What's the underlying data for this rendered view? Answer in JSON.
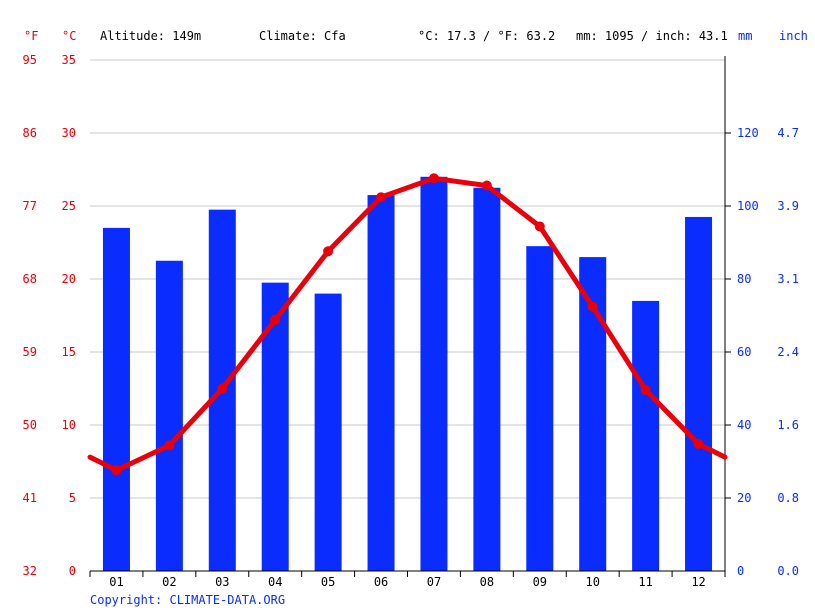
{
  "header": {
    "unit_f": "°F",
    "unit_c": "°C",
    "altitude": "Altitude: 149m",
    "climate": "Climate: Cfa",
    "temp_summary": "°C: 17.3 / °F: 63.2",
    "precip_summary": "mm: 1095 / inch: 43.1",
    "unit_mm": "mm",
    "unit_inch": "inch"
  },
  "copyright": "Copyright: CLIMATE-DATA.ORG",
  "colors": {
    "precipitation": "#0a2cff",
    "temperature": "#e8000b",
    "grid": "#c8c8c8",
    "axis": "#000000"
  },
  "chart_data": {
    "type": "bar",
    "categories": [
      "01",
      "02",
      "03",
      "04",
      "05",
      "06",
      "07",
      "08",
      "09",
      "10",
      "11",
      "12"
    ],
    "series": [
      {
        "type": "bar",
        "axis": "right",
        "unit": "mm",
        "values": [
          94,
          85,
          99,
          79,
          76,
          103,
          108,
          105,
          89,
          86,
          74,
          97
        ]
      },
      {
        "type": "line",
        "axis": "left",
        "unit": "°C",
        "values": [
          6.9,
          8.6,
          12.5,
          17.2,
          21.9,
          25.6,
          26.9,
          26.4,
          23.6,
          18.1,
          12.4,
          8.7
        ],
        "edge_start": 7.8,
        "edge_end": 7.8
      }
    ],
    "y_left_c": {
      "ticks": [
        0,
        5,
        10,
        15,
        20,
        25,
        30,
        35
      ],
      "range": [
        0,
        35
      ]
    },
    "y_left_f": {
      "ticks": [
        "32",
        "41",
        "50",
        "59",
        "68",
        "77",
        "86",
        "95"
      ]
    },
    "y_right_mm": {
      "ticks": [
        "0",
        "20",
        "40",
        "60",
        "80",
        "100",
        "120"
      ],
      "range": [
        0,
        140
      ]
    },
    "y_right_inch": {
      "ticks": [
        "0.0",
        "0.8",
        "1.6",
        "2.4",
        "3.1",
        "3.9",
        "4.7"
      ]
    },
    "grid": true
  }
}
